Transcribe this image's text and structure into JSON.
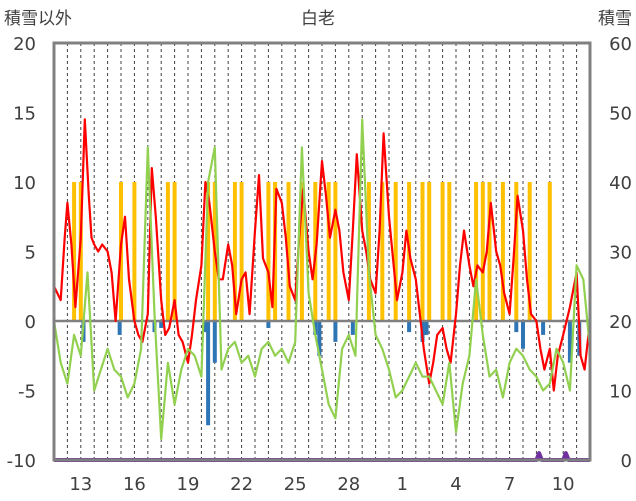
{
  "chart_data": {
    "type": "line",
    "title": "白老",
    "ylabel_left": "積雪以外",
    "ylabel_right": "積雪",
    "ylim_left": [
      -10,
      20
    ],
    "ylim_right": [
      0,
      60
    ],
    "yticks_left": [
      -10,
      -5,
      0,
      5,
      10,
      15,
      20
    ],
    "yticks_right": [
      0,
      10,
      20,
      30,
      40,
      50,
      60
    ],
    "xlim": [
      0,
      40
    ],
    "x_tick_positions": [
      2,
      6,
      10,
      14,
      18,
      22,
      26,
      30,
      34,
      38
    ],
    "x_tick_labels": [
      "13",
      "16",
      "19",
      "22",
      "25",
      "28",
      "1",
      "4",
      "7",
      "10"
    ],
    "grid": {
      "horizontal": false,
      "vertical_dashed": true,
      "vertical_every": 1
    },
    "zero_line": true,
    "colors": {
      "orange_bars": "#ffc000",
      "blue_bars": "#2e75b6",
      "red_line": "#ff0000",
      "green_line": "#92d050",
      "purple_line": "#7030a0",
      "zero_line": "#808080",
      "frame": "#808080"
    },
    "series": [
      {
        "type": "bar",
        "axis": "left",
        "color_key": "orange_bars",
        "x": [
          1.5,
          2.0,
          5.0,
          6.0,
          8.5,
          9.0,
          11.5,
          12.0,
          13.5,
          14.0,
          16.0,
          16.5,
          17.5,
          18.5,
          19.5,
          20.5,
          21.0,
          23.5,
          24.5,
          25.5,
          26.5,
          27.5,
          28.0,
          29.0,
          29.5,
          31.5,
          32.0,
          32.5,
          33.5,
          34.5,
          35.5,
          37.0
        ],
        "values": [
          10,
          10,
          10,
          10,
          10,
          10,
          10,
          10,
          10,
          10,
          10,
          10,
          10,
          10,
          10,
          10,
          10,
          10,
          10,
          10,
          10,
          10,
          10,
          10,
          10,
          10,
          10,
          10,
          10,
          10,
          10,
          10
        ]
      },
      {
        "type": "bar",
        "axis": "left",
        "color_key": "blue_bars",
        "x": [
          2.2,
          4.9,
          7.5,
          8.0,
          11.3,
          11.5,
          12.0,
          16.0,
          19.5,
          19.8,
          21.0,
          22.3,
          26.5,
          27.5,
          27.8,
          34.5,
          35.0,
          36.5,
          38.5,
          39.2
        ],
        "values": [
          -1.5,
          -1.0,
          -0.8,
          -0.5,
          -0.8,
          -7.5,
          -3.0,
          -0.5,
          -1.0,
          -2.5,
          -1.5,
          -1.0,
          -0.8,
          -1.5,
          -1.0,
          -0.8,
          -2.0,
          -1.0,
          -3.0,
          -2.5
        ]
      },
      {
        "type": "line",
        "axis": "left",
        "color_key": "red_line",
        "x": [
          0,
          0.5,
          0.8,
          1.0,
          1.3,
          1.6,
          2.0,
          2.3,
          2.6,
          2.8,
          3.0,
          3.3,
          3.6,
          4.0,
          4.3,
          4.6,
          5.0,
          5.3,
          5.6,
          6.0,
          6.3,
          6.6,
          7.0,
          7.3,
          7.6,
          8.0,
          8.3,
          8.6,
          9.0,
          9.3,
          9.6,
          10.0,
          10.3,
          10.6,
          11.0,
          11.3,
          11.6,
          12.0,
          12.3,
          12.6,
          13.0,
          13.3,
          13.6,
          14.0,
          14.3,
          14.6,
          15.0,
          15.3,
          15.6,
          16.0,
          16.3,
          16.6,
          17.0,
          17.3,
          17.6,
          18.0,
          18.3,
          18.6,
          19.0,
          19.3,
          19.6,
          20.0,
          20.3,
          20.6,
          21.0,
          21.3,
          21.6,
          22.0,
          22.3,
          22.6,
          23.0,
          23.3,
          23.6,
          24.0,
          24.3,
          24.6,
          25.0,
          25.3,
          25.6,
          26.0,
          26.3,
          26.6,
          27.0,
          27.3,
          27.6,
          28.0,
          28.3,
          28.6,
          29.0,
          29.3,
          29.6,
          30.0,
          30.3,
          30.6,
          31.0,
          31.3,
          31.6,
          32.0,
          32.3,
          32.6,
          33.0,
          33.3,
          33.6,
          34.0,
          34.3,
          34.6,
          35.0,
          35.3,
          35.6,
          36.0,
          36.3,
          36.6,
          37.0,
          37.3,
          37.6,
          38.0,
          38.5,
          39.0,
          39.3,
          39.6,
          40.0
        ],
        "values": [
          2.5,
          1.5,
          6.0,
          8.5,
          5.5,
          1.0,
          6.0,
          14.5,
          9.0,
          6.0,
          5.5,
          5.0,
          5.5,
          5.0,
          3.5,
          0.0,
          5.5,
          7.5,
          3.0,
          0.0,
          -1.0,
          -1.5,
          0.5,
          11.0,
          7.5,
          1.5,
          -1.0,
          -0.5,
          1.5,
          -1.0,
          -1.5,
          -3.0,
          -1.0,
          1.5,
          4.0,
          10.0,
          8.5,
          5.0,
          3.0,
          3.0,
          5.5,
          4.0,
          0.5,
          3.0,
          3.5,
          0.5,
          6.5,
          10.5,
          4.5,
          3.5,
          1.0,
          9.5,
          8.5,
          6.0,
          2.5,
          1.5,
          6.0,
          9.5,
          5.0,
          3.0,
          5.5,
          11.5,
          9.0,
          6.0,
          8.0,
          6.5,
          3.5,
          1.5,
          6.5,
          12.0,
          6.5,
          5.0,
          3.0,
          2.0,
          6.5,
          13.5,
          7.5,
          4.5,
          1.5,
          3.5,
          6.5,
          4.5,
          3.0,
          0.5,
          -2.0,
          -4.5,
          -3.0,
          -1.0,
          -0.5,
          -2.0,
          -3.0,
          0.5,
          4.0,
          6.5,
          4.0,
          2.5,
          4.0,
          3.5,
          5.0,
          8.5,
          5.0,
          4.0,
          2.0,
          0.5,
          4.5,
          9.0,
          6.5,
          3.0,
          0.5,
          0.0,
          -2.0,
          -3.5,
          -2.0,
          -5.0,
          -2.5,
          -1.0,
          1.0,
          3.5,
          -2.5,
          -3.5,
          0.0
        ]
      },
      {
        "type": "line",
        "axis": "left",
        "color_key": "green_line",
        "x": [
          0,
          0.5,
          1.0,
          1.5,
          2.0,
          2.5,
          3.0,
          3.5,
          4.0,
          4.5,
          5.0,
          5.5,
          6.0,
          6.5,
          7.0,
          7.5,
          8.0,
          8.5,
          9.0,
          9.5,
          10.0,
          10.5,
          11.0,
          11.5,
          12.0,
          12.5,
          13.0,
          13.5,
          14.0,
          14.5,
          15.0,
          15.5,
          16.0,
          16.5,
          17.0,
          17.5,
          18.0,
          18.5,
          19.0,
          19.5,
          20.0,
          20.5,
          21.0,
          21.5,
          22.0,
          22.5,
          23.0,
          23.5,
          24.0,
          24.5,
          25.0,
          25.5,
          26.0,
          26.5,
          27.0,
          27.5,
          28.0,
          28.5,
          29.0,
          29.5,
          30.0,
          30.5,
          31.0,
          31.5,
          32.0,
          32.5,
          33.0,
          33.5,
          34.0,
          34.5,
          35.0,
          35.5,
          36.0,
          36.5,
          37.0,
          37.5,
          38.0,
          38.5,
          39.0,
          39.5,
          40.0
        ],
        "values": [
          0.0,
          -3.0,
          -4.5,
          -1.0,
          -2.5,
          3.5,
          -5.0,
          -3.5,
          -2.0,
          -3.5,
          -4.0,
          -5.5,
          -4.5,
          -2.0,
          12.5,
          0.5,
          -8.5,
          -3.0,
          -6.0,
          -3.5,
          -2.0,
          -2.5,
          -4.0,
          10.0,
          12.5,
          -3.5,
          -2.0,
          -1.5,
          -3.0,
          -2.5,
          -4.0,
          -2.0,
          -1.5,
          -2.5,
          -2.0,
          -3.0,
          -1.5,
          12.5,
          2.0,
          -1.0,
          -3.5,
          -6.0,
          -7.0,
          -2.0,
          -1.0,
          -2.5,
          14.5,
          3.5,
          -1.0,
          -2.0,
          -3.5,
          -5.5,
          -5.0,
          -4.0,
          -3.0,
          -4.0,
          -4.0,
          -5.0,
          -6.0,
          -3.0,
          -8.0,
          -4.5,
          -2.5,
          3.0,
          -1.0,
          -4.0,
          -3.5,
          -5.5,
          -3.0,
          -2.0,
          -2.5,
          -3.5,
          -4.0,
          -5.0,
          -4.5,
          -2.0,
          -3.0,
          -5.0,
          4.0,
          3.0,
          -2.0
        ]
      },
      {
        "type": "line",
        "axis": "right",
        "color_key": "purple_line",
        "x": [
          0,
          36.0,
          36.2,
          36.4,
          37.0,
          38.0,
          38.2,
          38.4,
          40.0
        ],
        "values": [
          0,
          0,
          1.0,
          0,
          0,
          0,
          1.0,
          0,
          0
        ]
      }
    ]
  }
}
